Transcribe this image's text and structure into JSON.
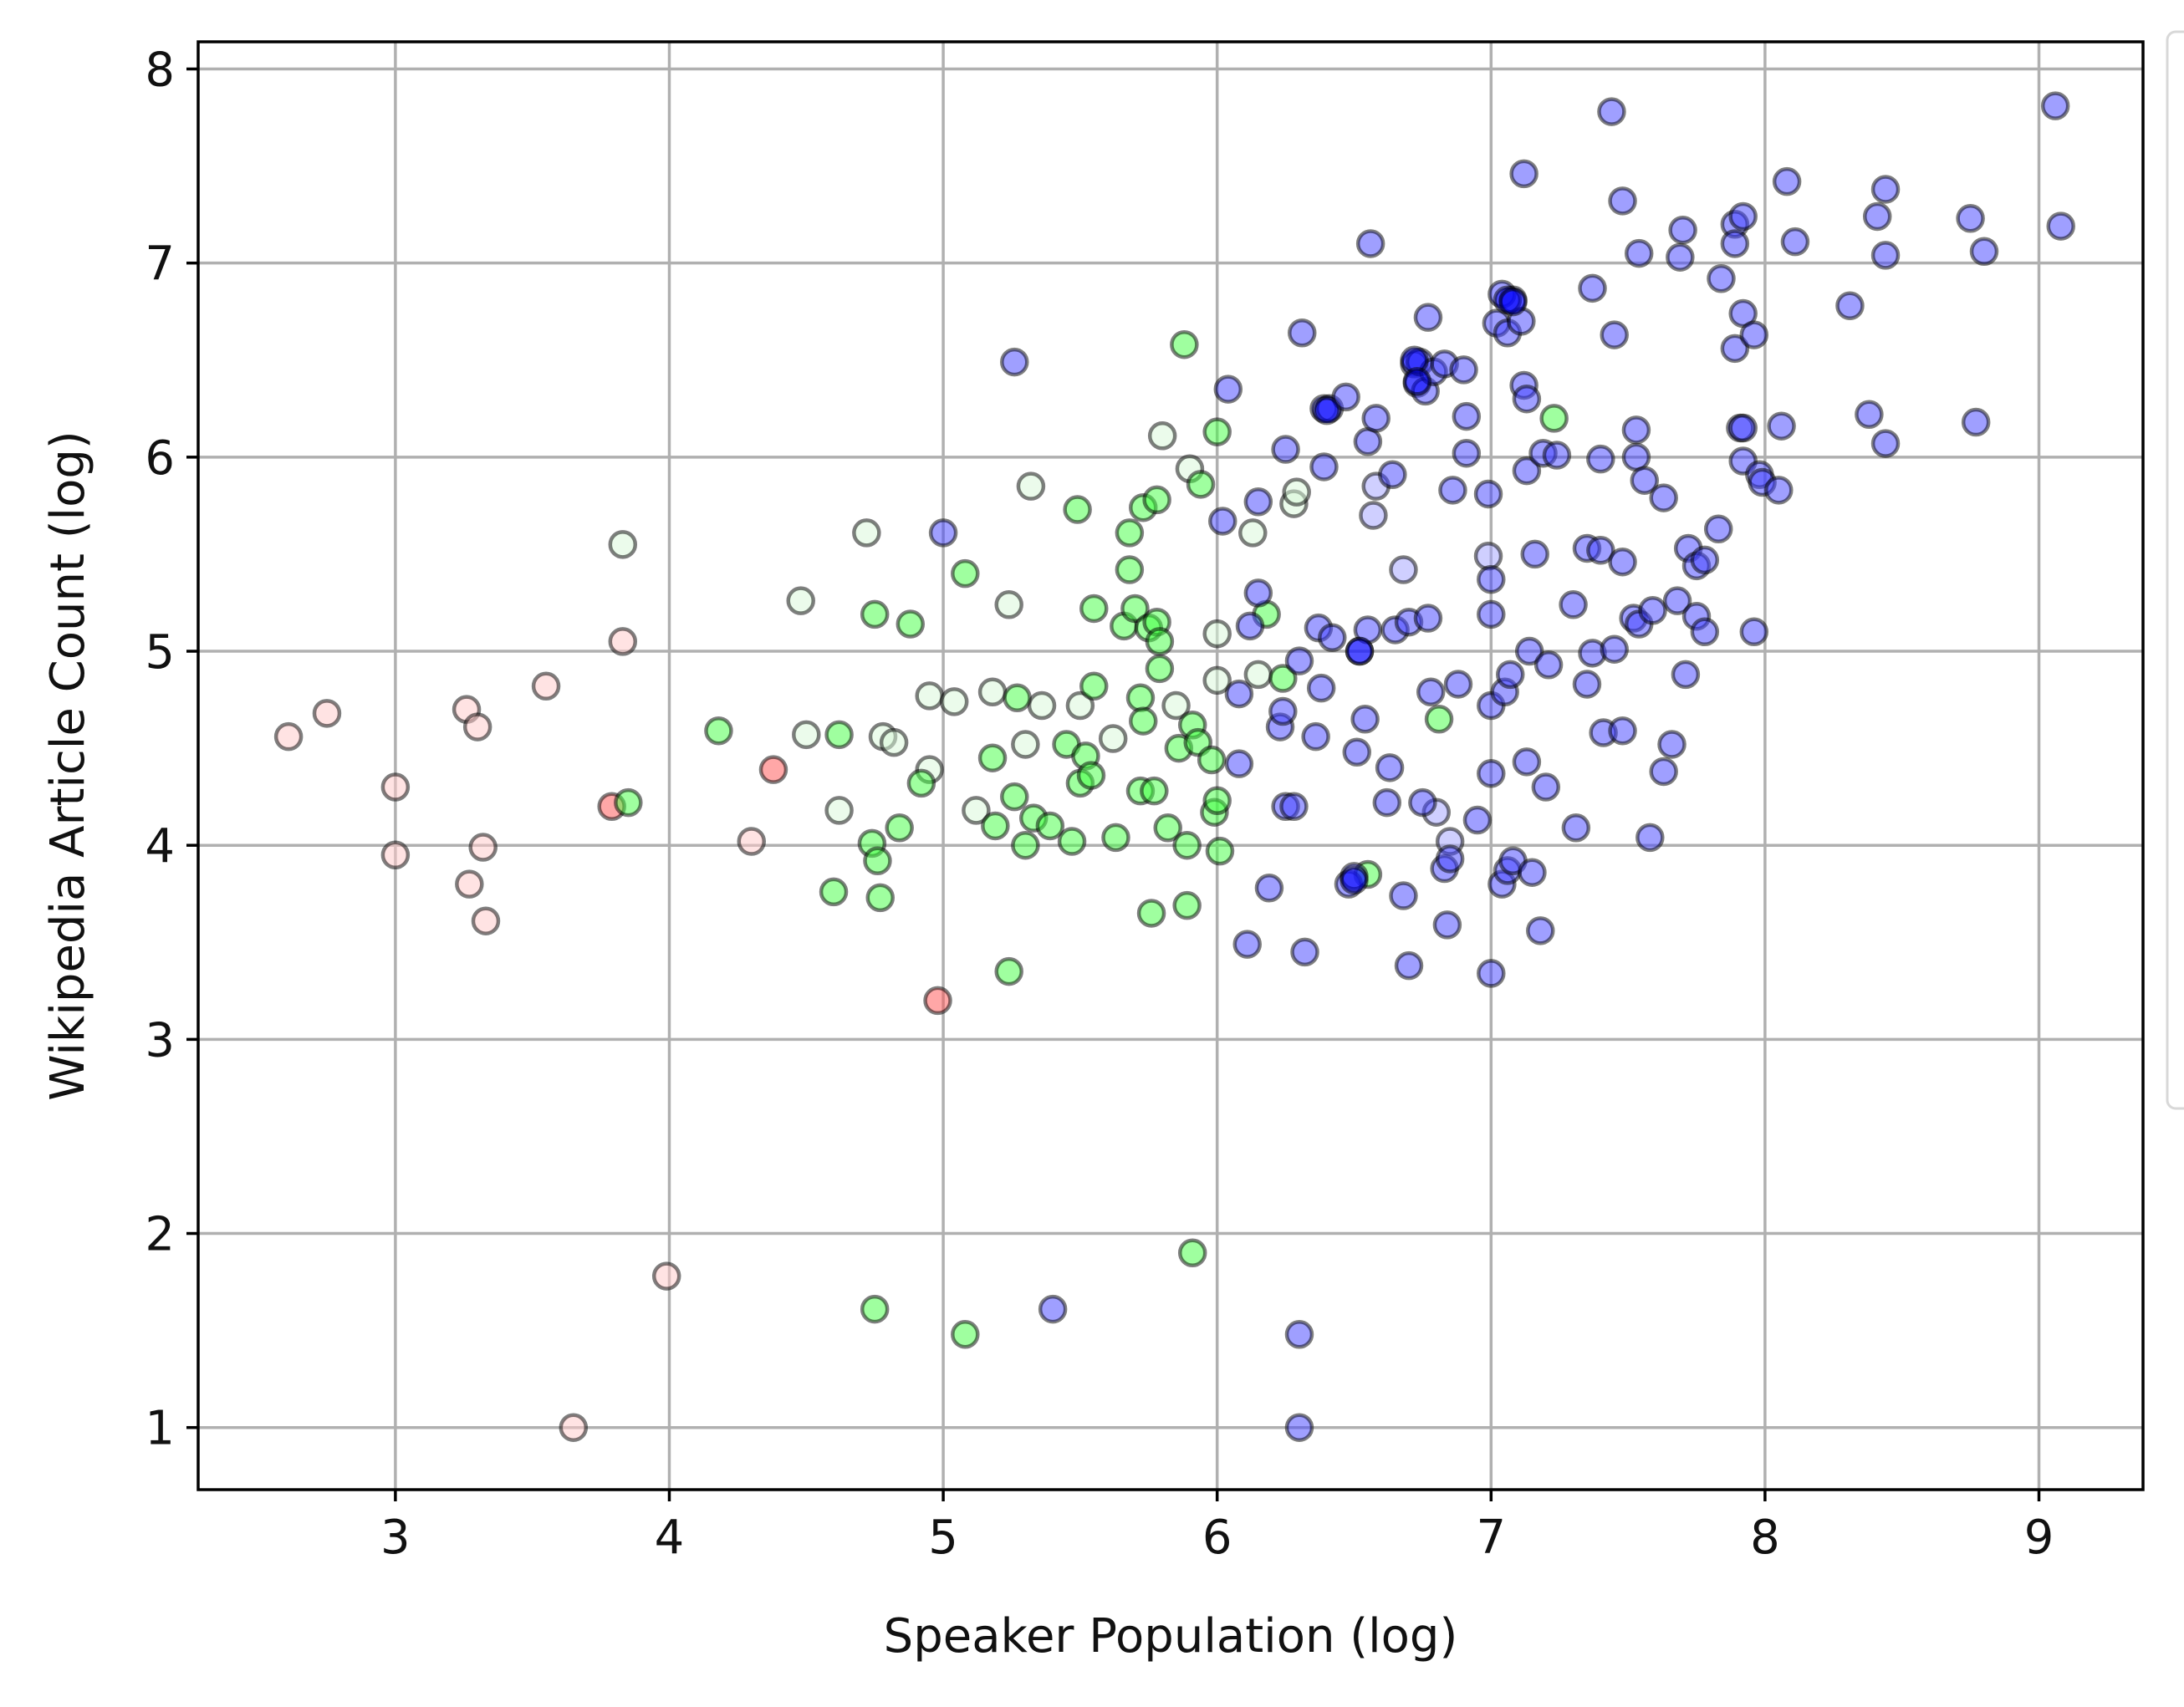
{
  "chart_data": {
    "type": "scatter",
    "title": "",
    "xlabel": "Speaker Population (log)",
    "ylabel": "Wikipedia Article Count (log)",
    "xlim": [
      2.28,
      9.38
    ],
    "ylim": [
      0.68,
      8.14
    ],
    "xticks": [
      3,
      4,
      5,
      6,
      7,
      8,
      9
    ],
    "yticks": [
      1,
      2,
      3,
      4,
      5,
      6,
      7,
      8
    ],
    "grid": true,
    "legend_position": "right, outside plot area (entries not visible)",
    "marker_edge_color": "#000000",
    "marker_alpha": 0.5,
    "series": [
      {
        "color": "#ffc8c8",
        "points": [
          [
            2.61,
            4.56
          ],
          [
            2.75,
            4.68
          ],
          [
            3.0,
            4.3
          ],
          [
            3.0,
            3.95
          ],
          [
            3.26,
            4.7
          ],
          [
            3.3,
            4.61
          ],
          [
            3.27,
            3.8
          ],
          [
            3.32,
            3.99
          ],
          [
            3.33,
            3.61
          ],
          [
            3.55,
            4.82
          ],
          [
            3.65,
            1.0
          ],
          [
            3.83,
            5.05
          ],
          [
            3.99,
            1.78
          ],
          [
            4.3,
            4.02
          ]
        ]
      },
      {
        "color": "#ff5050",
        "points": [
          [
            3.79,
            4.2
          ],
          [
            4.38,
            4.39
          ],
          [
            4.98,
            3.2
          ]
        ]
      },
      {
        "color": "#d8f8d8",
        "points": [
          [
            3.83,
            5.55
          ],
          [
            4.48,
            5.26
          ],
          [
            4.5,
            4.57
          ],
          [
            4.62,
            4.18
          ],
          [
            4.72,
            5.61
          ],
          [
            4.78,
            4.56
          ],
          [
            4.82,
            4.53
          ],
          [
            4.95,
            4.39
          ],
          [
            4.95,
            4.77
          ],
          [
            5.04,
            4.74
          ],
          [
            5.12,
            4.18
          ],
          [
            5.18,
            4.79
          ],
          [
            5.24,
            5.24
          ],
          [
            5.3,
            4.52
          ],
          [
            5.32,
            5.85
          ],
          [
            5.36,
            4.72
          ],
          [
            5.5,
            4.72
          ],
          [
            5.62,
            4.55
          ],
          [
            5.8,
            6.11
          ],
          [
            5.85,
            4.72
          ],
          [
            5.9,
            5.94
          ],
          [
            6.0,
            5.09
          ],
          [
            6.0,
            4.85
          ],
          [
            6.13,
            5.61
          ],
          [
            6.15,
            4.88
          ],
          [
            6.28,
            5.76
          ],
          [
            6.29,
            5.82
          ]
        ]
      },
      {
        "color": "#40ff40",
        "points": [
          [
            3.85,
            4.22
          ],
          [
            4.18,
            4.59
          ],
          [
            4.6,
            3.76
          ],
          [
            4.62,
            4.57
          ],
          [
            4.74,
            4.01
          ],
          [
            4.76,
            3.92
          ],
          [
            4.77,
            3.73
          ],
          [
            4.75,
            5.19
          ],
          [
            4.75,
            1.61
          ],
          [
            4.84,
            4.09
          ],
          [
            4.88,
            5.14
          ],
          [
            4.92,
            4.32
          ],
          [
            5.08,
            5.4
          ],
          [
            5.08,
            1.48
          ],
          [
            5.18,
            4.45
          ],
          [
            5.19,
            4.1
          ],
          [
            5.24,
            3.35
          ],
          [
            5.27,
            4.76
          ],
          [
            5.26,
            4.25
          ],
          [
            5.3,
            4.0
          ],
          [
            5.33,
            4.14
          ],
          [
            5.39,
            4.1
          ],
          [
            5.45,
            4.52
          ],
          [
            5.47,
            4.02
          ],
          [
            5.49,
            5.73
          ],
          [
            5.5,
            4.32
          ],
          [
            5.52,
            4.46
          ],
          [
            5.54,
            4.36
          ],
          [
            5.55,
            4.82
          ],
          [
            5.55,
            5.22
          ],
          [
            5.63,
            4.04
          ],
          [
            5.66,
            5.13
          ],
          [
            5.68,
            5.61
          ],
          [
            5.68,
            5.42
          ],
          [
            5.7,
            5.22
          ],
          [
            5.72,
            4.76
          ],
          [
            5.72,
            4.28
          ],
          [
            5.73,
            5.74
          ],
          [
            5.73,
            4.64
          ],
          [
            5.75,
            5.12
          ],
          [
            5.76,
            3.65
          ],
          [
            5.77,
            4.28
          ],
          [
            5.78,
            5.78
          ],
          [
            5.78,
            5.15
          ],
          [
            5.79,
            5.05
          ],
          [
            5.79,
            4.91
          ],
          [
            5.82,
            4.09
          ],
          [
            5.86,
            4.5
          ],
          [
            5.88,
            6.58
          ],
          [
            5.89,
            4.0
          ],
          [
            5.89,
            3.69
          ],
          [
            5.91,
            4.62
          ],
          [
            5.91,
            1.9
          ],
          [
            5.93,
            4.53
          ],
          [
            5.94,
            5.86
          ],
          [
            5.98,
            4.44
          ],
          [
            5.99,
            4.17
          ],
          [
            6.0,
            6.13
          ],
          [
            6.0,
            4.23
          ],
          [
            6.01,
            3.97
          ],
          [
            6.18,
            5.19
          ],
          [
            6.24,
            4.86
          ],
          [
            6.55,
            3.85
          ],
          [
            6.81,
            4.65
          ],
          [
            7.23,
            6.2
          ]
        ]
      },
      {
        "color": "#a0a0ff",
        "points": [
          [
            6.57,
            5.7
          ],
          [
            6.58,
            5.85
          ],
          [
            6.68,
            5.42
          ],
          [
            6.8,
            4.17
          ],
          [
            6.85,
            4.02
          ],
          [
            6.99,
            5.49
          ]
        ]
      },
      {
        "color": "#4040ff",
        "points": [
          [
            5.0,
            5.61
          ],
          [
            5.26,
            6.49
          ],
          [
            5.4,
            1.61
          ],
          [
            6.02,
            5.67
          ],
          [
            6.04,
            6.35
          ],
          [
            6.08,
            4.42
          ],
          [
            6.08,
            4.78
          ],
          [
            6.11,
            3.49
          ],
          [
            6.12,
            5.13
          ],
          [
            6.15,
            5.3
          ],
          [
            6.15,
            5.77
          ],
          [
            6.19,
            3.78
          ],
          [
            6.23,
            4.61
          ],
          [
            6.24,
            4.69
          ],
          [
            6.25,
            4.2
          ],
          [
            6.25,
            6.04
          ],
          [
            6.28,
            4.2
          ],
          [
            6.3,
            4.95
          ],
          [
            6.3,
            1.48
          ],
          [
            6.3,
            1.0
          ],
          [
            6.31,
            6.64
          ],
          [
            6.32,
            3.45
          ],
          [
            6.36,
            4.56
          ],
          [
            6.37,
            5.12
          ],
          [
            6.38,
            4.81
          ],
          [
            6.39,
            6.25
          ],
          [
            6.39,
            5.95
          ],
          [
            6.41,
            6.25
          ],
          [
            6.42,
            5.07
          ],
          [
            6.47,
            6.31
          ],
          [
            6.48,
            3.8
          ],
          [
            6.5,
            3.84
          ],
          [
            6.51,
            4.48
          ],
          [
            6.52,
            5.0
          ],
          [
            6.54,
            4.65
          ],
          [
            6.55,
            5.11
          ],
          [
            6.55,
            6.08
          ],
          [
            6.56,
            7.1
          ],
          [
            6.58,
            6.2
          ],
          [
            6.62,
            4.22
          ],
          [
            6.63,
            4.4
          ],
          [
            6.64,
            5.91
          ],
          [
            6.65,
            5.11
          ],
          [
            6.68,
            3.74
          ],
          [
            6.7,
            5.15
          ],
          [
            6.7,
            3.38
          ],
          [
            6.72,
            6.48
          ],
          [
            6.73,
            6.38
          ],
          [
            6.74,
            6.49
          ],
          [
            6.75,
            4.22
          ],
          [
            6.76,
            6.34
          ],
          [
            6.77,
            5.17
          ],
          [
            6.77,
            6.72
          ],
          [
            6.78,
            4.79
          ],
          [
            6.79,
            6.44
          ],
          [
            6.83,
            3.88
          ],
          [
            6.83,
            6.48
          ],
          [
            6.84,
            3.59
          ],
          [
            6.85,
            3.93
          ],
          [
            6.86,
            5.83
          ],
          [
            6.88,
            4.83
          ],
          [
            6.9,
            6.45
          ],
          [
            6.91,
            6.21
          ],
          [
            6.91,
            6.02
          ],
          [
            6.95,
            4.13
          ],
          [
            6.99,
            5.81
          ],
          [
            7.0,
            5.37
          ],
          [
            7.0,
            3.34
          ],
          [
            7.0,
            4.37
          ],
          [
            7.0,
            4.72
          ],
          [
            7.0,
            5.19
          ],
          [
            7.02,
            6.69
          ],
          [
            7.04,
            6.84
          ],
          [
            7.04,
            3.8
          ],
          [
            7.05,
            4.79
          ],
          [
            7.06,
            6.64
          ],
          [
            7.06,
            3.87
          ],
          [
            7.07,
            4.88
          ],
          [
            7.08,
            3.92
          ],
          [
            7.08,
            6.81
          ],
          [
            7.11,
            6.7
          ],
          [
            7.12,
            7.46
          ],
          [
            7.12,
            6.37
          ],
          [
            7.13,
            6.3
          ],
          [
            7.13,
            5.93
          ],
          [
            7.13,
            4.43
          ],
          [
            7.14,
            5.0
          ],
          [
            7.15,
            3.86
          ],
          [
            7.16,
            5.5
          ],
          [
            7.18,
            3.56
          ],
          [
            7.19,
            6.02
          ],
          [
            7.2,
            4.3
          ],
          [
            7.21,
            4.93
          ],
          [
            7.24,
            6.01
          ],
          [
            7.3,
            5.24
          ],
          [
            7.31,
            4.09
          ],
          [
            7.35,
            5.53
          ],
          [
            7.35,
            4.83
          ],
          [
            7.37,
            4.99
          ],
          [
            7.37,
            6.87
          ],
          [
            7.4,
            5.52
          ],
          [
            7.4,
            5.99
          ],
          [
            7.41,
            4.58
          ],
          [
            7.44,
            7.78
          ],
          [
            7.45,
            6.63
          ],
          [
            7.45,
            5.01
          ],
          [
            7.48,
            4.59
          ],
          [
            7.48,
            5.46
          ],
          [
            7.48,
            7.32
          ],
          [
            7.52,
            5.17
          ],
          [
            7.53,
            6.14
          ],
          [
            7.53,
            6.0
          ],
          [
            7.54,
            7.05
          ],
          [
            7.54,
            5.14
          ],
          [
            7.56,
            5.88
          ],
          [
            7.58,
            4.04
          ],
          [
            7.59,
            5.21
          ],
          [
            7.63,
            4.38
          ],
          [
            7.63,
            5.79
          ],
          [
            7.66,
            4.52
          ],
          [
            7.68,
            5.26
          ],
          [
            7.69,
            7.03
          ],
          [
            7.7,
            7.17
          ],
          [
            7.71,
            4.88
          ],
          [
            7.72,
            5.53
          ],
          [
            7.75,
            5.18
          ],
          [
            7.75,
            5.44
          ],
          [
            7.78,
            5.1
          ],
          [
            7.78,
            5.47
          ],
          [
            7.83,
            5.63
          ],
          [
            7.84,
            6.92
          ],
          [
            7.89,
            7.2
          ],
          [
            7.89,
            7.1
          ],
          [
            7.89,
            6.56
          ],
          [
            7.91,
            6.15
          ],
          [
            7.92,
            6.74
          ],
          [
            7.92,
            5.98
          ],
          [
            7.92,
            6.15
          ],
          [
            7.92,
            7.24
          ],
          [
            7.96,
            5.1
          ],
          [
            7.96,
            6.63
          ],
          [
            7.98,
            5.91
          ],
          [
            7.99,
            5.87
          ],
          [
            8.05,
            5.83
          ],
          [
            8.06,
            6.16
          ],
          [
            8.08,
            7.42
          ],
          [
            8.11,
            7.11
          ],
          [
            8.31,
            6.78
          ],
          [
            8.38,
            6.22
          ],
          [
            8.41,
            7.24
          ],
          [
            8.44,
            7.38
          ],
          [
            8.44,
            7.04
          ],
          [
            8.44,
            6.07
          ],
          [
            8.75,
            7.23
          ],
          [
            8.77,
            6.18
          ],
          [
            8.8,
            7.06
          ],
          [
            9.06,
            7.81
          ],
          [
            9.08,
            7.19
          ]
        ]
      },
      {
        "color": "#0000ff",
        "points": [
          [
            6.4,
            6.24
          ],
          [
            6.52,
            5.0
          ],
          [
            6.72,
            6.5
          ],
          [
            6.73,
            6.39
          ],
          [
            7.06,
            6.81
          ],
          [
            7.08,
            6.8
          ],
          [
            6.5,
            3.82
          ]
        ]
      }
    ]
  }
}
